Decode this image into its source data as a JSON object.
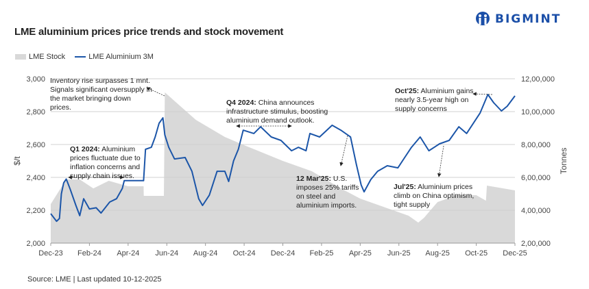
{
  "brand": "BIGMINT",
  "colors": {
    "price": "#1b55a8",
    "stock": "#d9d9d9",
    "brand": "#1b4fa8"
  },
  "source": "Source: LME | Last updated 10-12-2025",
  "chart_data": {
    "type": "line",
    "title": "LME aluminium prices price trends and stock movement",
    "legend": [
      "LME Stock",
      "LME Aluminium 3M"
    ],
    "legend_placement": "top-left",
    "ylabel": "$/t",
    "ylabel_right": "Tonnes",
    "ylim": [
      2000,
      3000
    ],
    "ylim_right": [
      200000,
      1200000
    ],
    "yticks": [
      "2,000",
      "2,200",
      "2,400",
      "2,600",
      "2,800",
      "3,000"
    ],
    "yticks_right": [
      "2,00,000",
      "4,00,000",
      "6,00,000",
      "8,00,000",
      "10,00,000",
      "12,00,000"
    ],
    "xticks": [
      "Dec-23",
      "Feb-24",
      "Apr-24",
      "Jun-24",
      "Aug-24",
      "Oct-24",
      "Dec-24",
      "Feb-25",
      "Apr-25",
      "Jun-25",
      "Aug-25",
      "Oct-25",
      "Dec-25"
    ],
    "x_unit": "months since Dec-23",
    "xlim": [
      0,
      24
    ],
    "grid": "horizontal",
    "series": [
      {
        "name": "LME Aluminium 3M",
        "type": "line",
        "axis": "left",
        "points": [
          [
            0,
            2179
          ],
          [
            0.3,
            2133
          ],
          [
            0.45,
            2150
          ],
          [
            0.55,
            2300
          ],
          [
            0.67,
            2367
          ],
          [
            0.8,
            2390
          ],
          [
            1.0,
            2330
          ],
          [
            1.3,
            2229
          ],
          [
            1.5,
            2167
          ],
          [
            1.7,
            2270
          ],
          [
            2.0,
            2208
          ],
          [
            2.35,
            2215
          ],
          [
            2.6,
            2183
          ],
          [
            3.05,
            2250
          ],
          [
            3.4,
            2270
          ],
          [
            3.7,
            2333
          ],
          [
            3.8,
            2380
          ],
          [
            4.8,
            2380
          ],
          [
            4.9,
            2571
          ],
          [
            5.2,
            2583
          ],
          [
            5.4,
            2646
          ],
          [
            5.6,
            2729
          ],
          [
            5.8,
            2762
          ],
          [
            5.9,
            2658
          ],
          [
            6.1,
            2583
          ],
          [
            6.4,
            2512
          ],
          [
            6.95,
            2521
          ],
          [
            7.3,
            2437
          ],
          [
            7.65,
            2270
          ],
          [
            7.85,
            2229
          ],
          [
            8.2,
            2292
          ],
          [
            8.6,
            2437
          ],
          [
            9.0,
            2437
          ],
          [
            9.2,
            2375
          ],
          [
            9.45,
            2500
          ],
          [
            9.7,
            2571
          ],
          [
            9.95,
            2687
          ],
          [
            10.5,
            2667
          ],
          [
            10.85,
            2708
          ],
          [
            11.4,
            2646
          ],
          [
            11.9,
            2625
          ],
          [
            12.45,
            2562
          ],
          [
            12.8,
            2583
          ],
          [
            13.2,
            2562
          ],
          [
            13.4,
            2667
          ],
          [
            13.9,
            2646
          ],
          [
            14.55,
            2717
          ],
          [
            15.0,
            2687
          ],
          [
            15.5,
            2646
          ],
          [
            15.8,
            2479
          ],
          [
            16.05,
            2354
          ],
          [
            16.2,
            2312
          ],
          [
            16.55,
            2387
          ],
          [
            16.9,
            2437
          ],
          [
            17.4,
            2471
          ],
          [
            17.95,
            2458
          ],
          [
            18.3,
            2521
          ],
          [
            18.65,
            2583
          ],
          [
            19.1,
            2646
          ],
          [
            19.55,
            2562
          ],
          [
            20.1,
            2604
          ],
          [
            20.6,
            2625
          ],
          [
            21.1,
            2708
          ],
          [
            21.5,
            2667
          ],
          [
            22.2,
            2792
          ],
          [
            22.6,
            2904
          ],
          [
            22.9,
            2854
          ],
          [
            23.3,
            2804
          ],
          [
            23.6,
            2833
          ],
          [
            24.0,
            2896
          ]
        ]
      },
      {
        "name": "LME Stock",
        "type": "area",
        "axis": "right",
        "points": [
          [
            0,
            437500
          ],
          [
            0.8,
            587500
          ],
          [
            1.5,
            587500
          ],
          [
            2.2,
            533000
          ],
          [
            3.0,
            579000
          ],
          [
            3.5,
            562500
          ],
          [
            4.0,
            545800
          ],
          [
            4.8,
            545800
          ],
          [
            4.81,
            487500
          ],
          [
            5.85,
            487500
          ],
          [
            5.9,
            1117000
          ],
          [
            6.5,
            1054000
          ],
          [
            7.5,
            950000
          ],
          [
            9.0,
            846000
          ],
          [
            10.0,
            796000
          ],
          [
            12.0,
            700000
          ],
          [
            13.5,
            637500
          ],
          [
            15.0,
            533000
          ],
          [
            16.0,
            470800
          ],
          [
            17.5,
            408300
          ],
          [
            18.5,
            366700
          ],
          [
            19.0,
            325000
          ],
          [
            19.3,
            354000
          ],
          [
            20.0,
            450000
          ],
          [
            21.0,
            491700
          ],
          [
            22.0,
            491700
          ],
          [
            22.5,
            458300
          ],
          [
            22.55,
            550000
          ],
          [
            24.0,
            520800
          ]
        ]
      }
    ],
    "annotations": [
      {
        "text": "Inventory rise surpasses 1 mnt. Signals significant oversupply in the market bringing down prices."
      },
      {
        "bold": "Q1 2024:",
        "text": " Aluminium prices fluctuate due to inflation concerns and supply chain issues."
      },
      {
        "bold": "Q4 2024:",
        "text": " China announces infrastructure stimulus, boosting aluminium demand outlook."
      },
      {
        "bold": "12 Mar'25:",
        "text": " U.S. imposes 25% tariffs on steel and aluminium imports."
      },
      {
        "bold": "Jul'25:",
        "text": " Aluminium prices climb on China optimism, tight supply"
      },
      {
        "bold": "Oct'25:",
        "text": " Aluminium gains nearly 3.5-year high on supply concerns"
      }
    ]
  }
}
